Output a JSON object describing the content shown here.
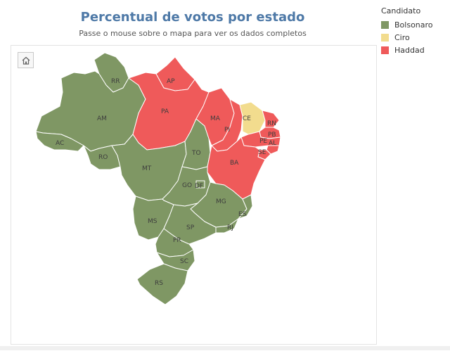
{
  "title": "Percentual de votos por estado",
  "subtitle": "Passe o mouse sobre o mapa para ver os dados completos",
  "home_icon": "home-icon",
  "legend": {
    "title": "Candidato",
    "items": [
      {
        "label": "Bolsonaro",
        "color": "#7f9764"
      },
      {
        "label": "Ciro",
        "color": "#f2dc8e"
      },
      {
        "label": "Haddad",
        "color": "#ef5a5a"
      }
    ]
  },
  "colors": {
    "Bolsonaro": "#7f9764",
    "Ciro": "#f2dc8e",
    "Haddad": "#ef5a5a"
  },
  "states": [
    {
      "label": "RR",
      "winner": "Bolsonaro"
    },
    {
      "label": "AP",
      "winner": "Haddad"
    },
    {
      "label": "AM",
      "winner": "Bolsonaro"
    },
    {
      "label": "PA",
      "winner": "Haddad"
    },
    {
      "label": "AC",
      "winner": "Bolsonaro"
    },
    {
      "label": "RO",
      "winner": "Bolsonaro"
    },
    {
      "label": "MT",
      "winner": "Bolsonaro"
    },
    {
      "label": "TO",
      "winner": "Bolsonaro"
    },
    {
      "label": "MA",
      "winner": "Haddad"
    },
    {
      "label": "PI",
      "winner": "Haddad"
    },
    {
      "label": "CE",
      "winner": "Ciro"
    },
    {
      "label": "RN",
      "winner": "Haddad"
    },
    {
      "label": "PB",
      "winner": "Haddad"
    },
    {
      "label": "PE",
      "winner": "Haddad"
    },
    {
      "label": "AL",
      "winner": "Haddad"
    },
    {
      "label": "SE",
      "winner": "Haddad"
    },
    {
      "label": "BA",
      "winner": "Haddad"
    },
    {
      "label": "GO",
      "winner": "Bolsonaro"
    },
    {
      "label": "DF",
      "winner": "Bolsonaro"
    },
    {
      "label": "MG",
      "winner": "Bolsonaro"
    },
    {
      "label": "ES",
      "winner": "Bolsonaro"
    },
    {
      "label": "RJ",
      "winner": "Bolsonaro"
    },
    {
      "label": "MS",
      "winner": "Bolsonaro"
    },
    {
      "label": "SP",
      "winner": "Bolsonaro"
    },
    {
      "label": "PR",
      "winner": "Bolsonaro"
    },
    {
      "label": "SC",
      "winner": "Bolsonaro"
    },
    {
      "label": "RS",
      "winner": "Bolsonaro"
    }
  ]
}
